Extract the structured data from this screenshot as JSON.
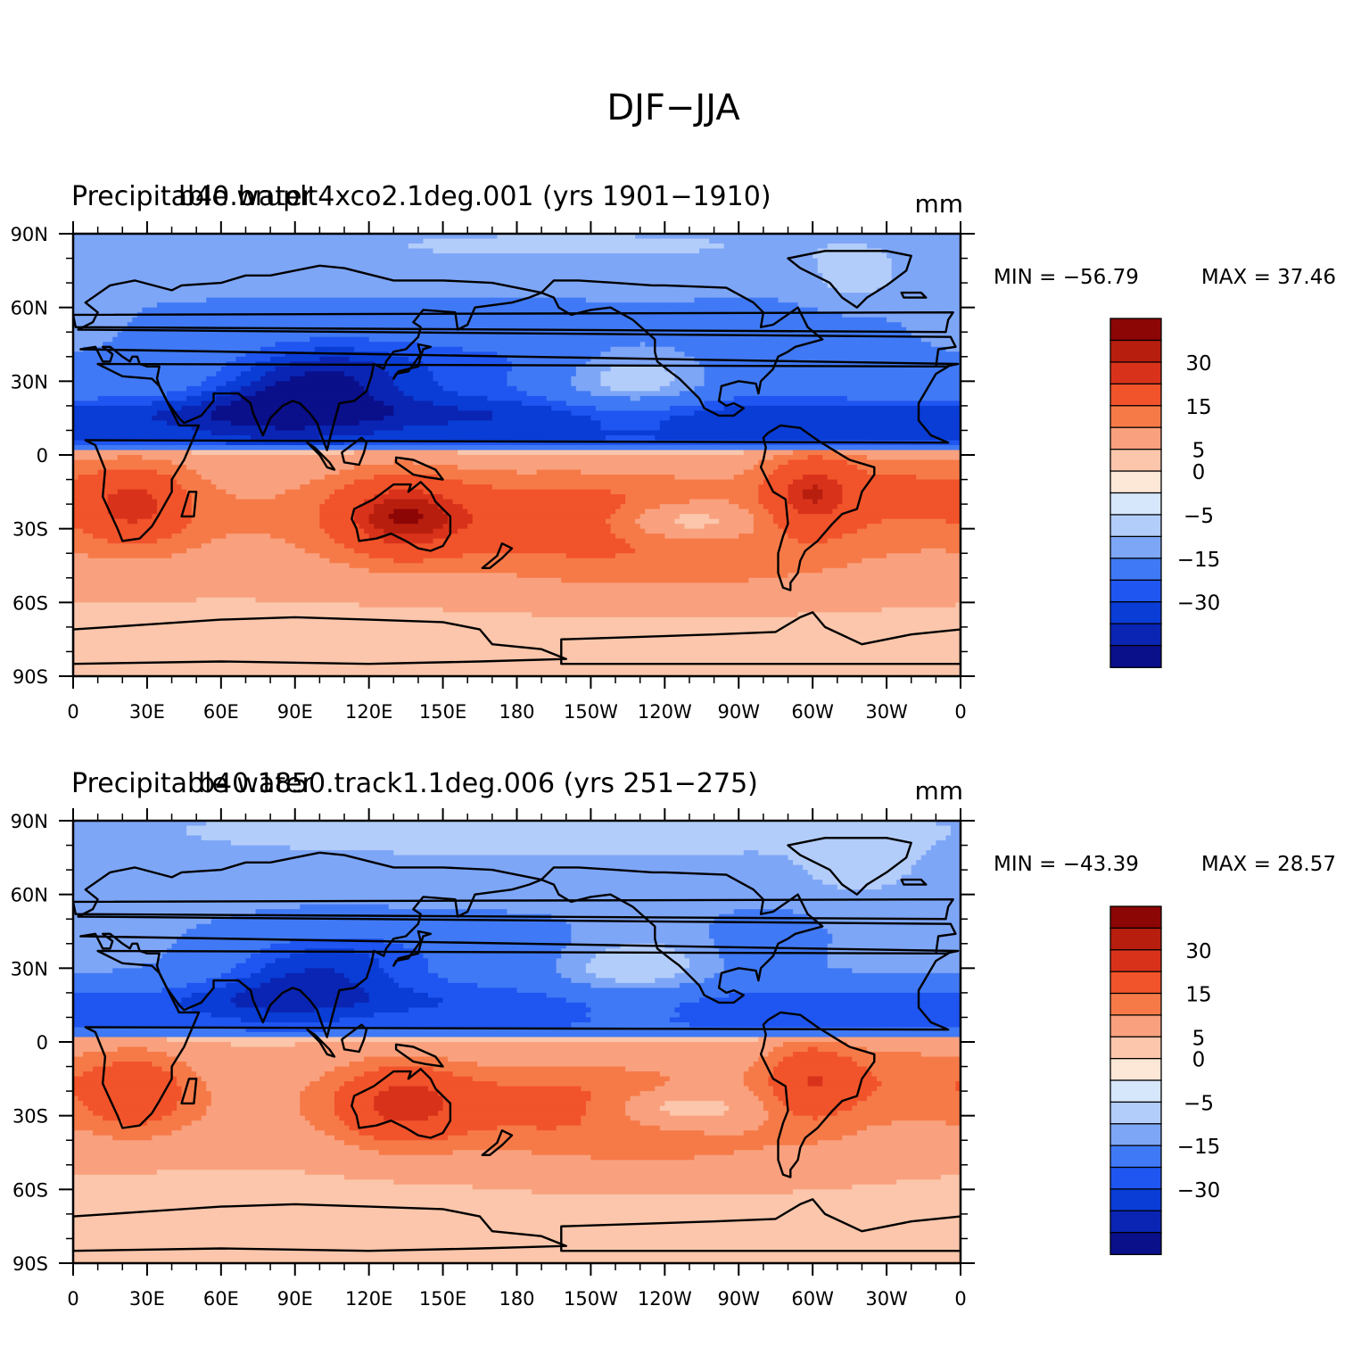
{
  "title": "DJF−JJA",
  "colors": {
    "levels": [
      "#0a0f8a",
      "#0a25b3",
      "#0a3cd6",
      "#1f55f0",
      "#4079f5",
      "#7ea6f7",
      "#b3cdfa",
      "#d6e7fc",
      "#fde7d7",
      "#fbc6ab",
      "#f9a17e",
      "#f67a48",
      "#f1532b",
      "#d9321b",
      "#b71e0e",
      "#8c0606"
    ],
    "land_outline": "#000000"
  },
  "chart_data": [
    {
      "type": "heatmap",
      "name": "panel-1",
      "title": "Precipitable water",
      "subtitle": "b40.bruplt4xco2.1deg.001 (yrs 1901−1910)",
      "units": "mm",
      "min_label": "MIN = −56.79",
      "max_label": "MAX =   37.46",
      "min": -56.79,
      "max": 37.46,
      "x_ticks": [
        "0",
        "30E",
        "60E",
        "90E",
        "120E",
        "150E",
        "180",
        "150W",
        "120W",
        "90W",
        "60W",
        "30W",
        "0"
      ],
      "y_ticks": [
        "90N",
        "60N",
        "30N",
        "0",
        "30S",
        "60S",
        "90S"
      ],
      "xlim": [
        0,
        360
      ],
      "ylim": [
        -90,
        90
      ],
      "contour_levels": [
        -40,
        -35,
        -30,
        -25,
        -15,
        -10,
        -5,
        -2,
        0,
        5,
        10,
        15,
        25,
        30,
        35
      ],
      "colorbar_labels": [
        {
          "level": 30,
          "text": "30"
        },
        {
          "level": 15,
          "text": "15"
        },
        {
          "level": 5,
          "text": "5"
        },
        {
          "level": 0,
          "text": "0"
        },
        {
          "level": -5,
          "text": "−5"
        },
        {
          "level": -15,
          "text": "−15"
        },
        {
          "level": -30,
          "text": "−30"
        }
      ]
    },
    {
      "type": "heatmap",
      "name": "panel-2",
      "title": "Precipitable water",
      "subtitle": "b40.1850.track1.1deg.006 (yrs 251−275)",
      "units": "mm",
      "min_label": "MIN = −43.39",
      "max_label": "MAX =   28.57",
      "min": -43.39,
      "max": 28.57,
      "x_ticks": [
        "0",
        "30E",
        "60E",
        "90E",
        "120E",
        "150E",
        "180",
        "150W",
        "120W",
        "90W",
        "60W",
        "30W",
        "0"
      ],
      "y_ticks": [
        "90N",
        "60N",
        "30N",
        "0",
        "30S",
        "60S",
        "90S"
      ],
      "xlim": [
        0,
        360
      ],
      "ylim": [
        -90,
        90
      ],
      "contour_levels": [
        -40,
        -35,
        -30,
        -25,
        -15,
        -10,
        -5,
        -2,
        0,
        5,
        10,
        15,
        25,
        30,
        35
      ],
      "colorbar_labels": [
        {
          "level": 30,
          "text": "30"
        },
        {
          "level": 15,
          "text": "15"
        },
        {
          "level": 5,
          "text": "5"
        },
        {
          "level": 0,
          "text": "0"
        },
        {
          "level": -5,
          "text": "−5"
        },
        {
          "level": -15,
          "text": "−15"
        },
        {
          "level": -30,
          "text": "−30"
        }
      ]
    }
  ]
}
